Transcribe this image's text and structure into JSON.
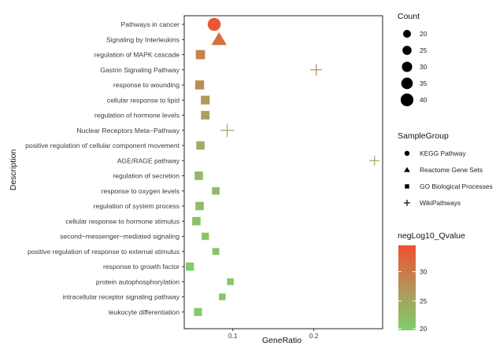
{
  "chart_data": {
    "type": "scatter",
    "title": "",
    "xlabel": "GeneRatio",
    "ylabel": "Description",
    "xlim": [
      0.04,
      0.285
    ],
    "x_ticks": [
      0.1,
      0.2
    ],
    "x_tick_labels": [
      "0.1",
      "0.2"
    ],
    "grid": false,
    "categories": [
      "Pathways in cancer",
      "Signaling by Interleukins",
      "regulation of MAPK cascade",
      "Gastrin Signaling Pathway",
      "response to wounding",
      "cellular response to lipid",
      "regulation of hormone levels",
      "Nuclear Receptors Meta−Pathway",
      "positive regulation of cellular component movement",
      "AGE/RAGE pathway",
      "regulation of secretion",
      "response to oxygen levels",
      "regulation of system process",
      "cellular response to hormone stimulus",
      "second−messenger−mediated signaling",
      "positive regulation of response to external stimulus",
      "response to growth factor",
      "protein autophosphorylation",
      "intracellular receptor signaling pathway",
      "leukocyte differentiation"
    ],
    "points": [
      {
        "description": "Pathways in cancer",
        "x": 0.077,
        "count": 41,
        "group": "KEGG Pathway",
        "qvalue": 34.0
      },
      {
        "description": "Signaling by Interleukins",
        "x": 0.083,
        "count": 40,
        "group": "Reactome Gene Sets",
        "qvalue": 31.0
      },
      {
        "description": "regulation of MAPK cascade",
        "x": 0.06,
        "count": 32,
        "group": "GO Biological Processes",
        "qvalue": 29.0
      },
      {
        "description": "Gastrin Signaling Pathway",
        "x": 0.203,
        "count": 26,
        "group": "WikiPathways",
        "qvalue": 28.5
      },
      {
        "description": "response to wounding",
        "x": 0.059,
        "count": 31,
        "group": "GO Biological Processes",
        "qvalue": 28.0
      },
      {
        "description": "cellular response to lipid",
        "x": 0.066,
        "count": 30,
        "group": "GO Biological Processes",
        "qvalue": 26.5
      },
      {
        "description": "regulation of hormone levels",
        "x": 0.066,
        "count": 29,
        "group": "GO Biological Processes",
        "qvalue": 25.5
      },
      {
        "description": "Nuclear Receptors Meta−Pathway",
        "x": 0.093,
        "count": 32,
        "group": "WikiPathways",
        "qvalue": 25.0
      },
      {
        "description": "positive regulation of cellular component movement",
        "x": 0.06,
        "count": 28,
        "group": "GO Biological Processes",
        "qvalue": 24.0
      },
      {
        "description": "AGE/RAGE pathway",
        "x": 0.275,
        "count": 20,
        "group": "WikiPathways",
        "qvalue": 25.0
      },
      {
        "description": "regulation of secretion",
        "x": 0.058,
        "count": 28,
        "group": "GO Biological Processes",
        "qvalue": 23.0
      },
      {
        "description": "response to oxygen levels",
        "x": 0.079,
        "count": 24,
        "group": "GO Biological Processes",
        "qvalue": 22.5
      },
      {
        "description": "regulation of system process",
        "x": 0.059,
        "count": 28,
        "group": "GO Biological Processes",
        "qvalue": 22.0
      },
      {
        "description": "cellular response to hormone stimulus",
        "x": 0.055,
        "count": 28,
        "group": "GO Biological Processes",
        "qvalue": 21.5
      },
      {
        "description": "second−messenger−mediated signaling",
        "x": 0.066,
        "count": 23,
        "group": "GO Biological Processes",
        "qvalue": 21.5
      },
      {
        "description": "positive regulation of response to external stimulus",
        "x": 0.079,
        "count": 21,
        "group": "GO Biological Processes",
        "qvalue": 21.5
      },
      {
        "description": "response to growth factor",
        "x": 0.047,
        "count": 27,
        "group": "GO Biological Processes",
        "qvalue": 20.5
      },
      {
        "description": "protein autophosphorylation",
        "x": 0.097,
        "count": 20,
        "group": "GO Biological Processes",
        "qvalue": 21.0
      },
      {
        "description": "intracellular receptor signaling pathway",
        "x": 0.087,
        "count": 20,
        "group": "GO Biological Processes",
        "qvalue": 21.0
      },
      {
        "description": "leukocyte differentiation",
        "x": 0.057,
        "count": 26,
        "group": "GO Biological Processes",
        "qvalue": 21.0
      }
    ],
    "legend": {
      "placement": "right",
      "count": {
        "title": "Count",
        "values": [
          20,
          25,
          30,
          35,
          40
        ],
        "labels": [
          "20",
          "25",
          "30",
          "35",
          "40"
        ]
      },
      "sample_group": {
        "title": "SampleGroup",
        "entries": [
          {
            "label": "KEGG Pathway",
            "shape": "circle"
          },
          {
            "label": "Reactome Gene Sets",
            "shape": "triangle"
          },
          {
            "label": "GO Biological Processes",
            "shape": "square"
          },
          {
            "label": "WikiPathways",
            "shape": "plus"
          }
        ]
      },
      "qvalue": {
        "title": "negLog10_Qvalue",
        "range": [
          20,
          34.5
        ],
        "ticks": [
          20,
          25,
          30
        ],
        "tick_labels": [
          "20",
          "25",
          "30"
        ],
        "color_low": "#7ecf6b",
        "color_mid": "#b5935a",
        "color_high": "#f0512e"
      }
    }
  }
}
